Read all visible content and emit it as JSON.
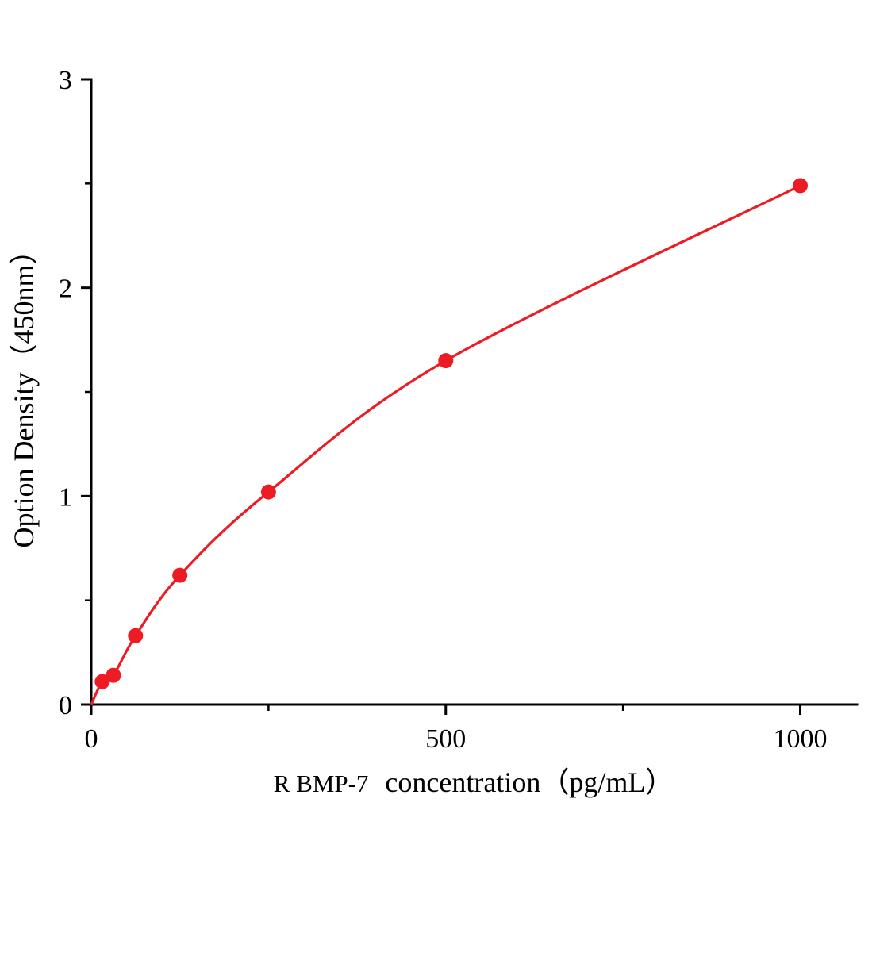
{
  "chart_data": {
    "type": "line",
    "title": "",
    "xlabel_part1": "R BMP-7",
    "xlabel_part2": "concentration（pg/mL）",
    "ylabel": "Option Density（450nm）",
    "xlim": [
      0,
      1080
    ],
    "ylim": [
      0,
      3
    ],
    "x_ticks": [
      0,
      500,
      1000
    ],
    "y_ticks": [
      0,
      1,
      2,
      3
    ],
    "x_minor_ticks": [
      250,
      750
    ],
    "y_minor_ticks": [
      0.5,
      1.5,
      2.5
    ],
    "grid": false,
    "legend": "none",
    "line_color": "#ed1c24",
    "marker_color": "#ed1c24",
    "axis_color": "#000000",
    "points": [
      {
        "x": 0,
        "y": 0,
        "marker": false
      },
      {
        "x": 15.6,
        "y": 0.11,
        "marker": true
      },
      {
        "x": 31.2,
        "y": 0.14,
        "marker": true
      },
      {
        "x": 62.5,
        "y": 0.33,
        "marker": true
      },
      {
        "x": 125,
        "y": 0.62,
        "marker": true
      },
      {
        "x": 250,
        "y": 1.02,
        "marker": true
      },
      {
        "x": 500,
        "y": 1.65,
        "marker": true
      },
      {
        "x": 1000,
        "y": 2.49,
        "marker": true
      }
    ]
  }
}
